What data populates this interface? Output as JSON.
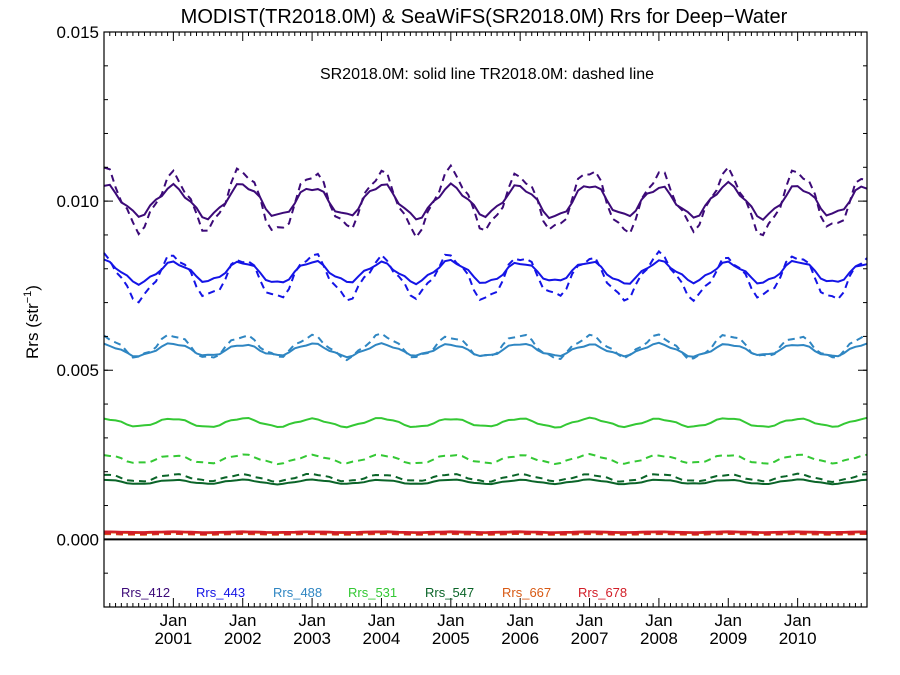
{
  "chart_data": {
    "type": "line",
    "title": "MODIST(TR2018.0M) & SeaWiFS(SR2018.0M)  Rrs for Deep−Water",
    "subtitle": "SR2018.0M: solid line   TR2018.0M: dashed line",
    "ylabel_main": "Rrs (str",
    "ylabel_sup": "−1",
    "ylabel_close": ")",
    "ylim": [
      -0.002,
      0.015
    ],
    "yticks": [
      {
        "value": 0.0,
        "label": "0.000"
      },
      {
        "value": 0.005,
        "label": "0.005"
      },
      {
        "value": 0.01,
        "label": "0.010"
      },
      {
        "value": 0.015,
        "label": "0.015"
      }
    ],
    "x_start_year": 2000,
    "x_start_month": 1,
    "x_months": 132,
    "xticks_label_top": "Jan",
    "xticks": [
      {
        "year": 2001,
        "label": "2001"
      },
      {
        "year": 2002,
        "label": "2002"
      },
      {
        "year": 2003,
        "label": "2003"
      },
      {
        "year": 2004,
        "label": "2004"
      },
      {
        "year": 2005,
        "label": "2005"
      },
      {
        "year": 2006,
        "label": "2006"
      },
      {
        "year": 2007,
        "label": "2007"
      },
      {
        "year": 2008,
        "label": "2008"
      },
      {
        "year": 2009,
        "label": "2009"
      },
      {
        "year": 2010,
        "label": "2010"
      }
    ],
    "zero_line": true,
    "legend_position": "bottom-left",
    "series": [
      {
        "name": "Rrs_412",
        "color": "#3c0a78",
        "solid": {
          "mean": 0.01,
          "amp": 0.00045,
          "phase": 0
        },
        "dashed": {
          "mean": 0.01,
          "amp": 0.00085,
          "phase": 0
        }
      },
      {
        "name": "Rrs_443",
        "color": "#1414e6",
        "solid": {
          "mean": 0.0079,
          "amp": 0.0003,
          "phase": 0
        },
        "dashed": {
          "mean": 0.00775,
          "amp": 0.0006,
          "phase": 0
        }
      },
      {
        "name": "Rrs_488",
        "color": "#2f86c2",
        "solid": {
          "mean": 0.0056,
          "amp": 0.00017,
          "phase": 0
        },
        "dashed": {
          "mean": 0.0057,
          "amp": 0.00032,
          "phase": 0
        }
      },
      {
        "name": "Rrs_531",
        "color": "#34c834",
        "solid": {
          "mean": 0.00345,
          "amp": 0.00012,
          "phase": 0
        },
        "dashed": {
          "mean": 0.00237,
          "amp": 0.00012,
          "phase": 0
        }
      },
      {
        "name": "Rrs_547",
        "color": "#0a6428",
        "solid": {
          "mean": 0.0017,
          "amp": 6e-05,
          "phase": 0
        },
        "dashed": {
          "mean": 0.00182,
          "amp": 0.0001,
          "phase": 0
        }
      },
      {
        "name": "Rrs_667",
        "color": "#d85a14",
        "solid": {
          "mean": 0.0002,
          "amp": 1e-05,
          "phase": 0
        },
        "dashed": {
          "mean": 0.00015,
          "amp": 1e-05,
          "phase": 0
        }
      },
      {
        "name": "Rrs_678",
        "color": "#d21e28",
        "solid": {
          "mean": 0.00022,
          "amp": 1e-05,
          "phase": 0
        },
        "dashed": {
          "mean": 0.00017,
          "amp": 1e-05,
          "phase": 0
        }
      }
    ]
  }
}
